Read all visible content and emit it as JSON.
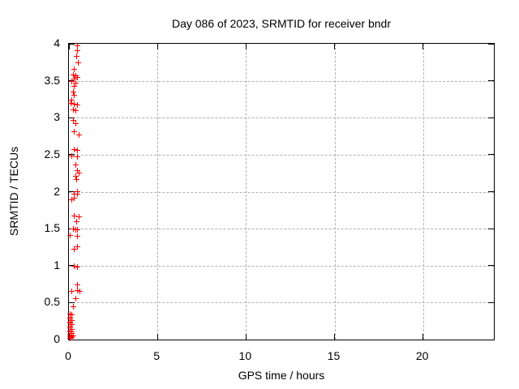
{
  "chart_data": {
    "type": "scatter",
    "title": "Day 086 of 2023, SRMTID for receiver bndr",
    "xlabel": "GPS time / hours",
    "ylabel": "SRMTID / TECUs",
    "xlim": [
      0,
      24
    ],
    "ylim": [
      0,
      4
    ],
    "xticks": [
      0,
      5,
      10,
      15,
      20
    ],
    "yticks": [
      0,
      0.5,
      1,
      1.5,
      2,
      2.5,
      3,
      3.5,
      4
    ],
    "grid": true,
    "grid_style": "dashed",
    "legend": "none",
    "marker": "plus",
    "colors": {
      "marker": "#ff0000",
      "grid": "#b0b0b0",
      "axis": "#000000",
      "background": "#ffffff"
    },
    "series_name": "SRMTID",
    "points": [
      [
        0.5,
        3.97
      ],
      [
        0.5,
        3.91
      ],
      [
        0.42,
        3.83
      ],
      [
        0.51,
        3.74
      ],
      [
        0.28,
        3.66
      ],
      [
        0.23,
        3.58
      ],
      [
        0.37,
        3.57
      ],
      [
        0.46,
        3.55
      ],
      [
        0.32,
        3.52
      ],
      [
        0.18,
        3.49
      ],
      [
        0.37,
        3.47
      ],
      [
        0.28,
        3.42
      ],
      [
        0.23,
        3.35
      ],
      [
        0.32,
        3.3
      ],
      [
        0.18,
        3.24
      ],
      [
        0.1,
        3.2
      ],
      [
        0.32,
        3.18
      ],
      [
        0.46,
        3.17
      ],
      [
        0.23,
        3.11
      ],
      [
        0.37,
        3.1
      ],
      [
        0.23,
        2.96
      ],
      [
        0.37,
        2.92
      ],
      [
        0.32,
        2.81
      ],
      [
        0.55,
        2.77
      ],
      [
        0.28,
        2.57
      ],
      [
        0.5,
        2.56
      ],
      [
        0.14,
        2.48
      ],
      [
        0.5,
        2.47
      ],
      [
        0.37,
        2.36
      ],
      [
        0.46,
        2.29
      ],
      [
        0.55,
        2.25
      ],
      [
        0.37,
        2.21
      ],
      [
        0.42,
        2.16
      ],
      [
        0.46,
        2.0
      ],
      [
        0.32,
        1.97
      ],
      [
        0.5,
        1.97
      ],
      [
        0.28,
        1.91
      ],
      [
        0.14,
        1.89
      ],
      [
        0.32,
        1.67
      ],
      [
        0.55,
        1.66
      ],
      [
        0.42,
        1.59
      ],
      [
        0.23,
        1.5
      ],
      [
        0.37,
        1.49
      ],
      [
        0.5,
        1.48
      ],
      [
        0.09,
        1.41
      ],
      [
        0.5,
        1.4
      ],
      [
        0.46,
        1.25
      ],
      [
        0.32,
        1.22
      ],
      [
        0.32,
        0.99
      ],
      [
        0.5,
        0.98
      ],
      [
        0.46,
        0.74
      ],
      [
        0.14,
        0.65
      ],
      [
        0.5,
        0.66
      ],
      [
        0.64,
        0.65
      ],
      [
        0.37,
        0.55
      ],
      [
        0.23,
        0.44
      ],
      [
        0.05,
        0.35
      ],
      [
        0.14,
        0.33
      ],
      [
        0.09,
        0.3
      ],
      [
        0.05,
        0.28
      ],
      [
        0.14,
        0.26
      ],
      [
        0.09,
        0.24
      ],
      [
        0.05,
        0.22
      ],
      [
        0.14,
        0.2
      ],
      [
        0.09,
        0.18
      ],
      [
        0.05,
        0.16
      ],
      [
        0.14,
        0.14
      ],
      [
        0.09,
        0.12
      ],
      [
        0.05,
        0.1
      ],
      [
        0.14,
        0.08
      ],
      [
        0.09,
        0.06
      ],
      [
        0.05,
        0.04
      ],
      [
        0.18,
        0.03
      ],
      [
        0.09,
        0.02
      ],
      [
        0.23,
        0.05
      ],
      [
        0.18,
        0.1
      ]
    ]
  }
}
